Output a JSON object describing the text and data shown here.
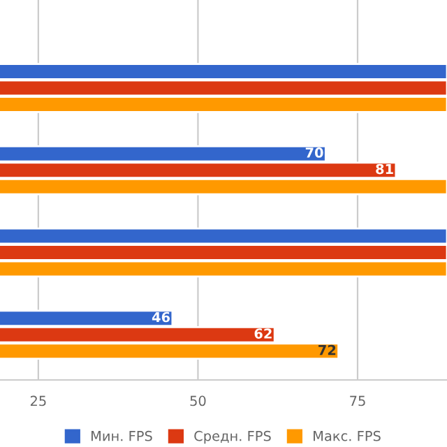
{
  "chart_data": {
    "type": "bar",
    "orientation": "horizontal",
    "categories": [
      null,
      null,
      null,
      null
    ],
    "series": [
      {
        "name": "Мин. FPS",
        "color": "#3366cc",
        "values": [
          89,
          70,
          89,
          46
        ],
        "value_labels": [
          null,
          "70",
          null,
          "46"
        ]
      },
      {
        "name": "Средн. FPS",
        "color": "#dc3912",
        "values": [
          89,
          81,
          89,
          62
        ],
        "value_labels": [
          null,
          "81",
          null,
          "62"
        ]
      },
      {
        "name": "Макс. FPS",
        "color": "#ff9900",
        "values": [
          89,
          89,
          89,
          72
        ],
        "value_labels": [
          null,
          null,
          null,
          "72"
        ]
      }
    ],
    "xlim": [
      19,
      89
    ],
    "xticks": [
      25,
      50,
      75
    ],
    "grid": "x",
    "legend": "bottom"
  }
}
